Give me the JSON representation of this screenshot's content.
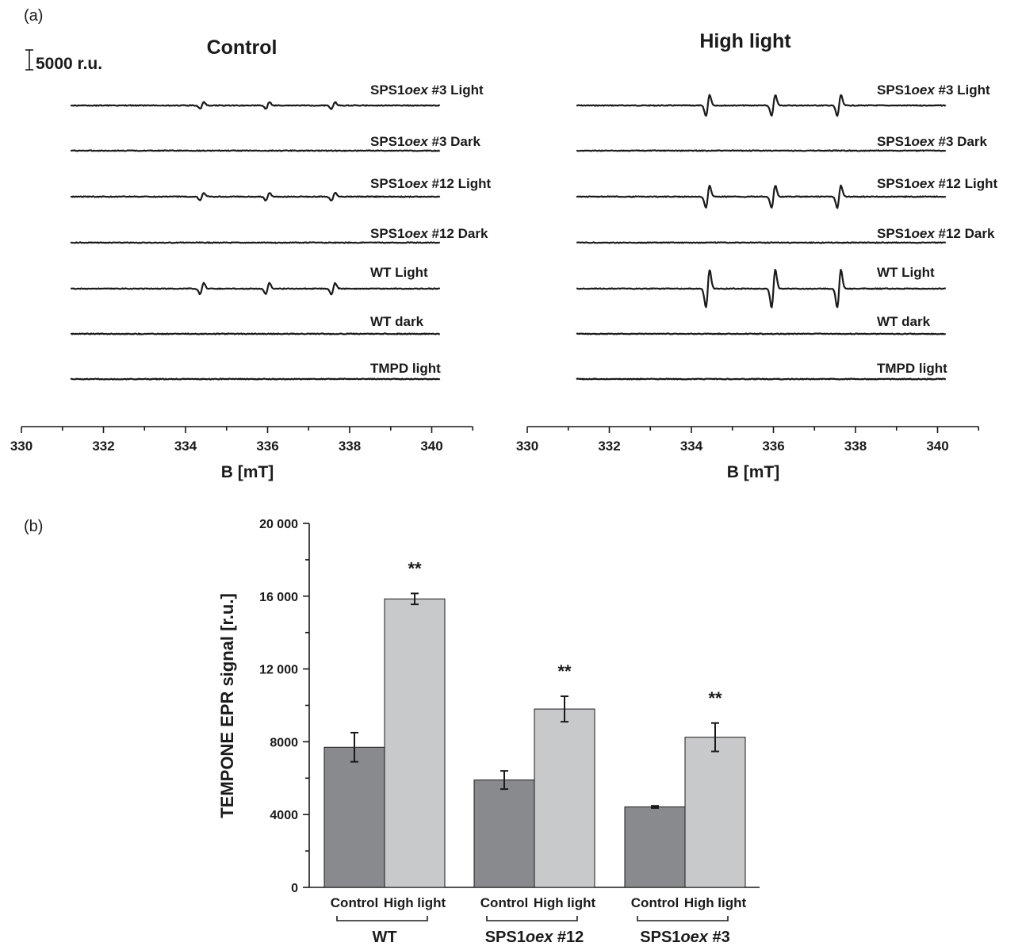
{
  "chart_data": [
    {
      "type": "line",
      "panel_label": "(a)",
      "title": "Control",
      "xlabel": "B [mT]",
      "xlim": [
        330,
        341
      ],
      "xticks": [
        "330",
        "332",
        "334",
        "336",
        "338",
        "340"
      ],
      "x_range_traces": [
        331.2,
        340.2
      ],
      "scale_bar_label": "5000 r.u.",
      "scale_bar_value": 5000,
      "peak_positions_mT": [
        334.4,
        336.0,
        337.6
      ],
      "series": [
        {
          "label_parts": [
            "SPS1",
            "oex",
            " #3 Light"
          ],
          "amplitude": 2400
        },
        {
          "label_parts": [
            "SPS1",
            "oex",
            " #3 Dark"
          ],
          "amplitude": 0
        },
        {
          "label_parts": [
            "SPS1",
            "oex",
            " #12 Light"
          ],
          "amplitude": 2800
        },
        {
          "label_parts": [
            "SPS1",
            "oex",
            " #12 Dark"
          ],
          "amplitude": 0
        },
        {
          "label_parts": [
            "WT Light"
          ],
          "amplitude": 4000
        },
        {
          "label_parts": [
            "WT dark"
          ],
          "amplitude": 0
        },
        {
          "label_parts": [
            "TMPD light"
          ],
          "amplitude": 0
        }
      ]
    },
    {
      "type": "line",
      "title": "High light",
      "xlabel": "B [mT]",
      "xlim": [
        330,
        341
      ],
      "xticks": [
        "330",
        "332",
        "334",
        "336",
        "338",
        "340"
      ],
      "x_range_traces": [
        331.2,
        340.2
      ],
      "peak_positions_mT": [
        334.4,
        336.0,
        337.6
      ],
      "series": [
        {
          "label_parts": [
            "SPS1",
            "oex",
            " #3 Light"
          ],
          "amplitude": 7500
        },
        {
          "label_parts": [
            "SPS1",
            "oex",
            " #3 Dark"
          ],
          "amplitude": 0
        },
        {
          "label_parts": [
            "SPS1",
            "oex",
            " #12 Light"
          ],
          "amplitude": 8000
        },
        {
          "label_parts": [
            "SPS1",
            "oex",
            " #12 Dark"
          ],
          "amplitude": 0
        },
        {
          "label_parts": [
            "WT Light"
          ],
          "amplitude": 13500
        },
        {
          "label_parts": [
            "WT dark"
          ],
          "amplitude": 0
        },
        {
          "label_parts": [
            "TMPD light"
          ],
          "amplitude": 0
        }
      ]
    },
    {
      "type": "bar",
      "panel_label": "(b)",
      "ylabel": "TEMPONE EPR signal [r.u.]",
      "ylim": [
        0,
        20000
      ],
      "yticks": [
        "0",
        "4000",
        "8000",
        "12 000",
        "16 000",
        "20 000"
      ],
      "yticks_values": [
        0,
        4000,
        8000,
        12000,
        16000,
        20000
      ],
      "colors": {
        "Control": "#898a8e",
        "High light": "#c8c9cb"
      },
      "groups": [
        {
          "name_parts": [
            "WT"
          ],
          "bars": [
            {
              "category": "Control",
              "value": 7700,
              "error": 800,
              "significance": ""
            },
            {
              "category": "High light",
              "value": 15850,
              "error": 300,
              "significance": "**"
            }
          ]
        },
        {
          "name_parts": [
            "SPS1",
            "oex",
            " #12"
          ],
          "bars": [
            {
              "category": "Control",
              "value": 5900,
              "error": 500,
              "significance": ""
            },
            {
              "category": "High light",
              "value": 9800,
              "error": 700,
              "significance": "**"
            }
          ]
        },
        {
          "name_parts": [
            "SPS1",
            "oex",
            " #3"
          ],
          "bars": [
            {
              "category": "Control",
              "value": 4420,
              "error": 60,
              "significance": ""
            },
            {
              "category": "High light",
              "value": 8250,
              "error": 780,
              "significance": "**"
            }
          ]
        }
      ]
    }
  ]
}
